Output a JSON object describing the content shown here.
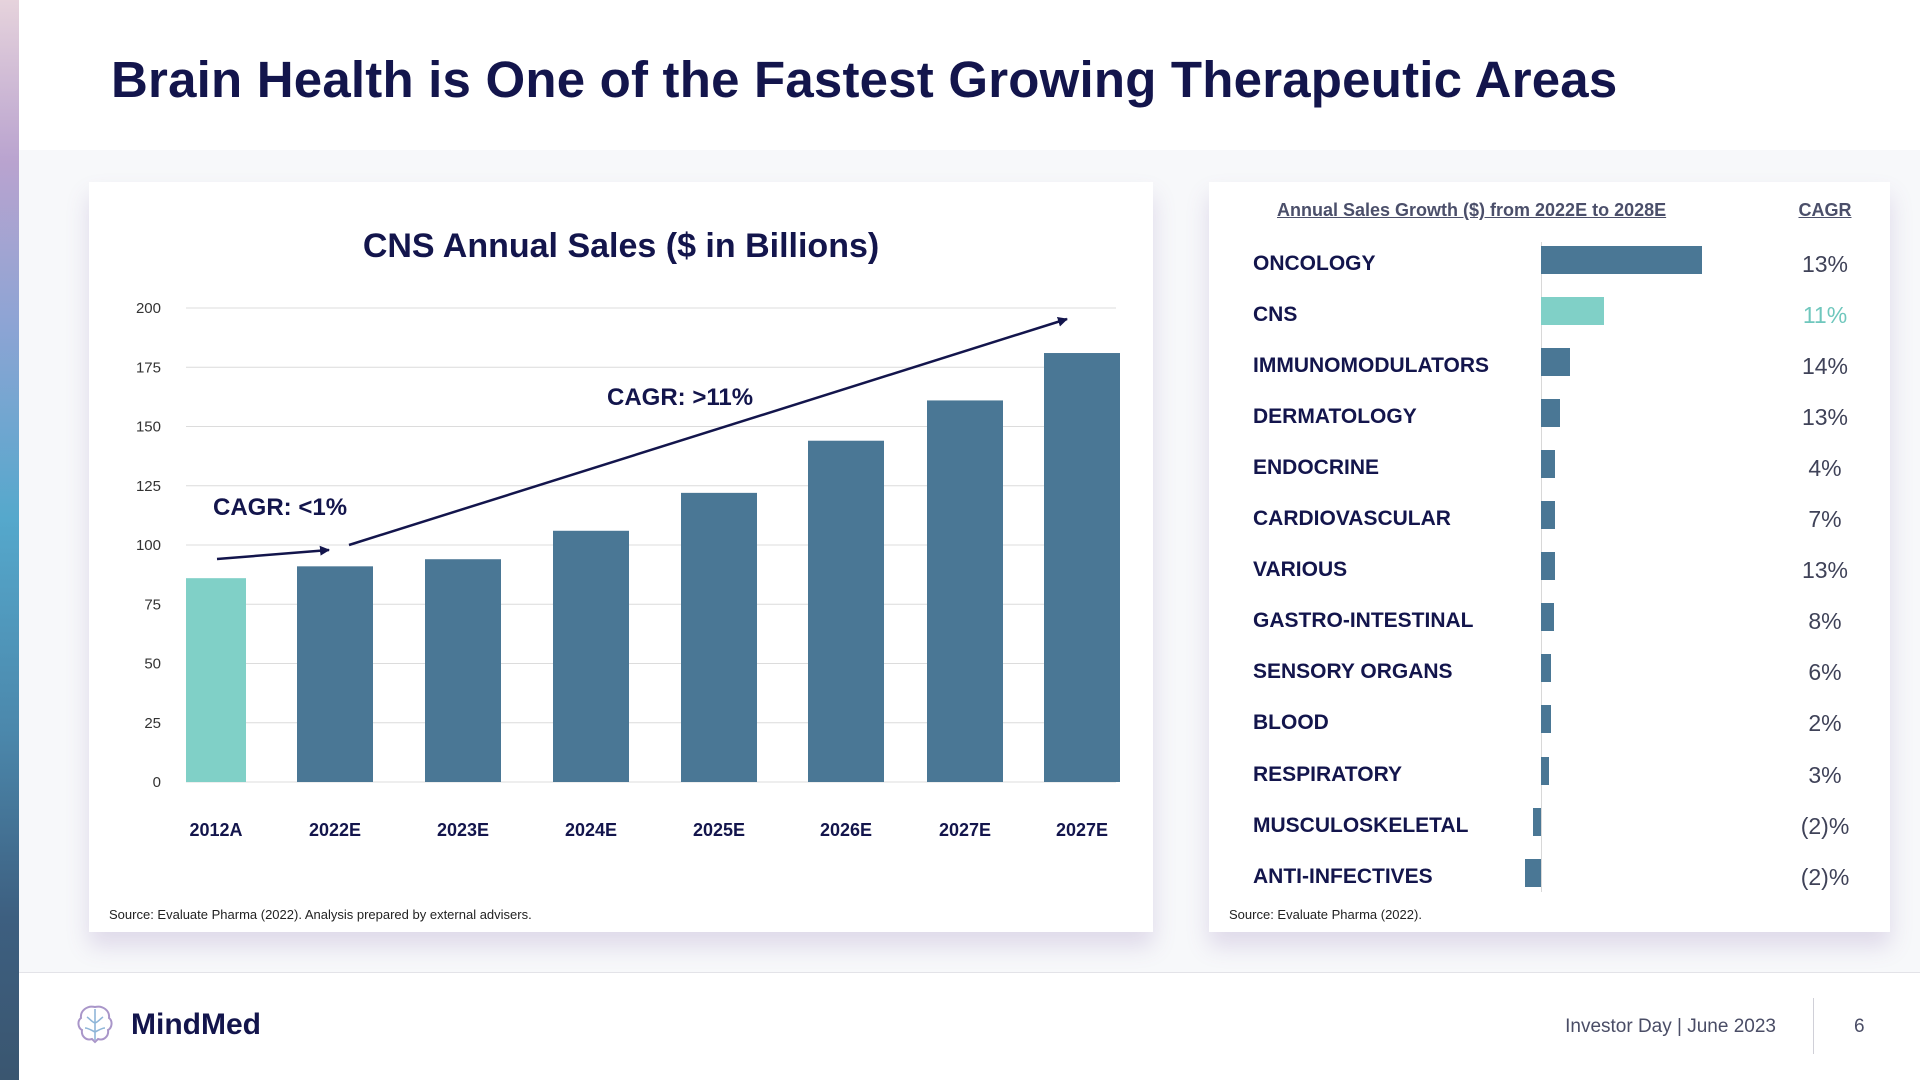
{
  "page": {
    "title": "Brain Health is One of the Fastest Growing Therapeutic Areas"
  },
  "left_panel": {
    "source": "Source: Evaluate Pharma (2022). Analysis prepared by external advisers."
  },
  "right_panel": {
    "header": "Annual Sales Growth ($) from 2022E to 2028E",
    "cagr_header": "CAGR",
    "source": "Source: Evaluate Pharma (2022).",
    "rows": [
      {
        "label": "ONCOLOGY",
        "cagr": "13%"
      },
      {
        "label": "CNS",
        "cagr": "11%"
      },
      {
        "label": "IMMUNOMODULATORS",
        "cagr": "14%"
      },
      {
        "label": "DERMATOLOGY",
        "cagr": "13%"
      },
      {
        "label": "ENDOCRINE",
        "cagr": "4%"
      },
      {
        "label": "CARDIOVASCULAR",
        "cagr": "7%"
      },
      {
        "label": "VARIOUS",
        "cagr": "13%"
      },
      {
        "label": "GASTRO-INTESTINAL",
        "cagr": "8%"
      },
      {
        "label": "SENSORY ORGANS",
        "cagr": "6%"
      },
      {
        "label": "BLOOD",
        "cagr": "2%"
      },
      {
        "label": "RESPIRATORY",
        "cagr": "3%"
      },
      {
        "label": "MUSCULOSKELETAL",
        "cagr": "(2)%"
      },
      {
        "label": "ANTI-INFECTIVES",
        "cagr": "(2)%"
      }
    ]
  },
  "chart_data": [
    {
      "type": "bar",
      "title": "CNS Annual Sales ($ in Billions)",
      "categories": [
        "2012A",
        "2022E",
        "2023E",
        "2024E",
        "2025E",
        "2026E",
        "2027E",
        "2027E"
      ],
      "values": [
        86,
        91,
        94,
        106,
        122,
        144,
        161,
        181
      ],
      "ylim": [
        0,
        200
      ],
      "yticks": [
        0,
        25,
        50,
        75,
        100,
        125,
        150,
        175,
        200
      ],
      "grid": true,
      "xlabel": "",
      "ylabel": "",
      "highlight_index": 0,
      "annotations": [
        {
          "text": "CAGR: <1%",
          "from": "2012A",
          "to": "2022E"
        },
        {
          "text": "CAGR: >11%",
          "from": "2022E",
          "to": "2027E"
        }
      ],
      "colors": {
        "highlight": "#80d0c7",
        "bar": "#4a7795"
      }
    },
    {
      "type": "bar",
      "orientation": "horizontal",
      "title": "Annual Sales Growth ($) from 2022E to 2028E",
      "categories": [
        "ONCOLOGY",
        "CNS",
        "IMMUNOMODULATORS",
        "DERMATOLOGY",
        "ENDOCRINE",
        "CARDIOVASCULAR",
        "VARIOUS",
        "GASTRO-INTESTINAL",
        "SENSORY ORGANS",
        "BLOOD",
        "RESPIRATORY",
        "MUSCULOSKELETAL",
        "ANTI-INFECTIVES"
      ],
      "values": [
        100,
        39,
        18,
        12,
        9,
        9,
        9,
        8,
        6,
        6,
        5,
        -5,
        -10
      ],
      "cagr": [
        "13%",
        "11%",
        "14%",
        "13%",
        "4%",
        "7%",
        "13%",
        "8%",
        "6%",
        "2%",
        "3%",
        "(2)%",
        "(2)%"
      ],
      "highlight_index": 1,
      "colors": {
        "highlight": "#80d0c7",
        "bar": "#4a7795"
      }
    }
  ],
  "footer": {
    "brand": "MindMed",
    "event": "Investor Day | June 2023",
    "page_number": "6"
  }
}
